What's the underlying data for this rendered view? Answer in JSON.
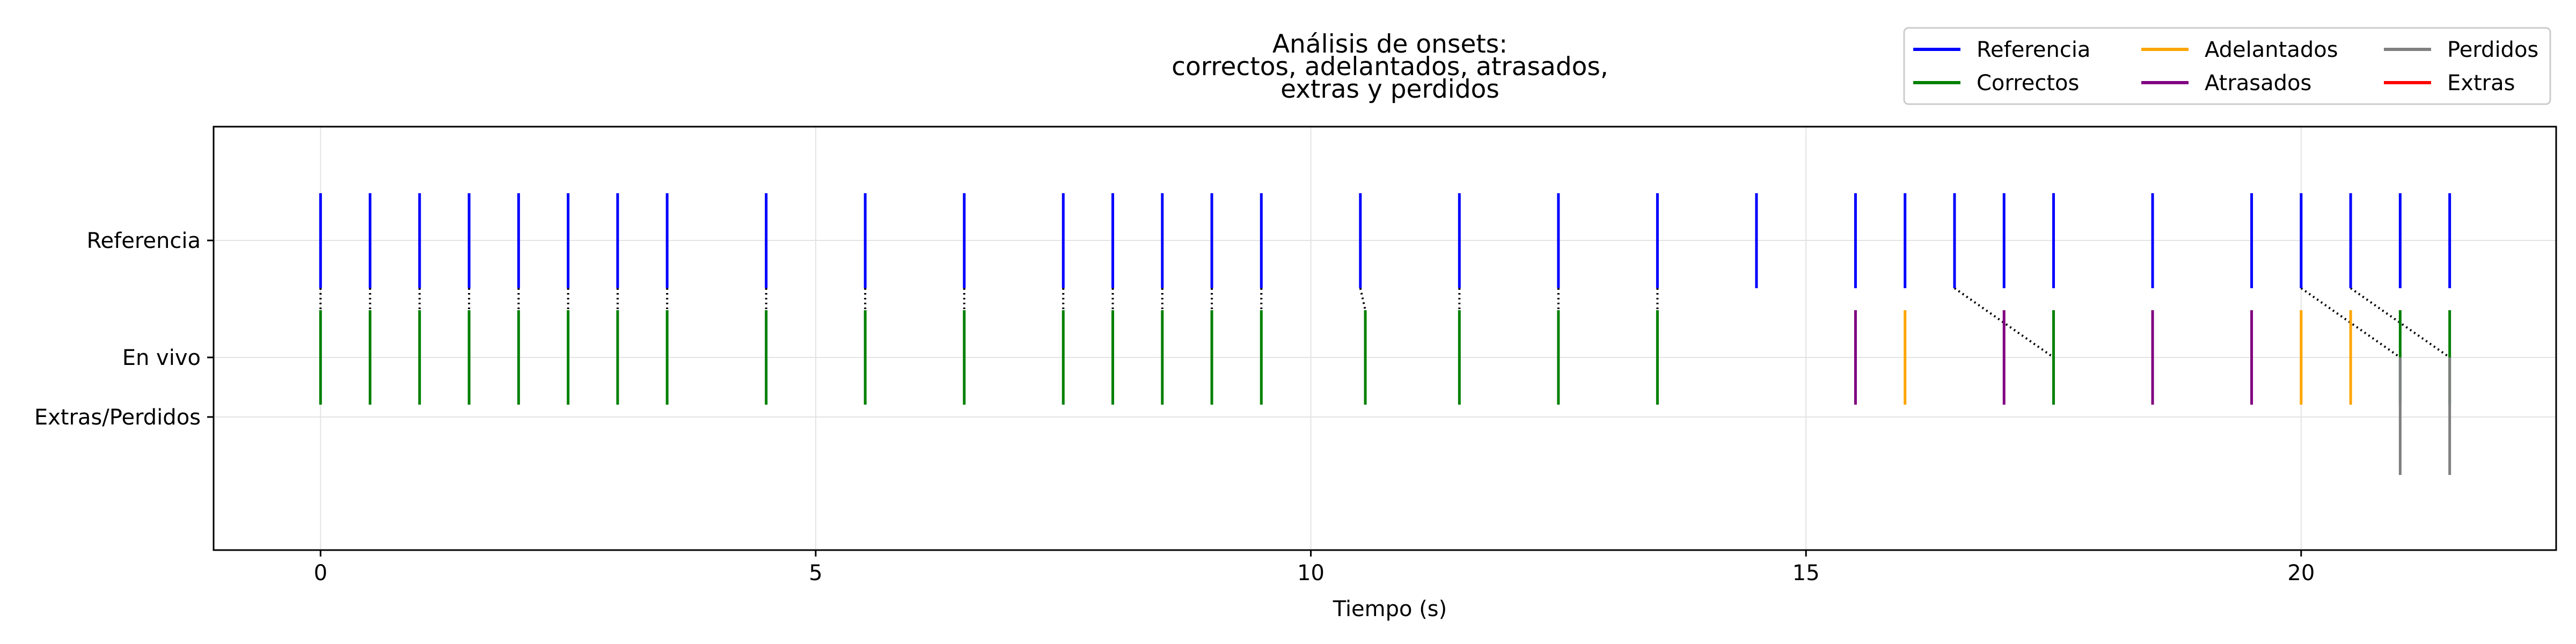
{
  "chart_data": {
    "type": "event-raster",
    "title": "Análisis de onsets:\ncorrectos, adelantados, atrasados,\nextras y perdidos",
    "xlabel": "Tiempo (s)",
    "ylabel": "",
    "xlim": [
      -1.08,
      22.575
    ],
    "x_ticks": [
      0,
      5,
      10,
      15,
      20
    ],
    "grid": true,
    "legend_position": "top-right",
    "rows": [
      "Referencia",
      "En vivo",
      "Extras/Perdidos"
    ],
    "legend": [
      {
        "label": "Referencia",
        "color": "#0000ff"
      },
      {
        "label": "Correctos",
        "color": "#008000"
      },
      {
        "label": "Adelantados",
        "color": "#ffa500"
      },
      {
        "label": "Atrasados",
        "color": "#800080"
      },
      {
        "label": "Perdidos",
        "color": "#808080"
      },
      {
        "label": "Extras",
        "color": "#ff0000"
      }
    ],
    "reference_onsets": [
      0,
      0.5,
      1.0,
      1.5,
      2.0,
      2.5,
      3.0,
      3.5,
      4.5,
      5.5,
      6.5,
      7.5,
      8.0,
      8.5,
      9.0,
      9.5,
      10.5,
      11.5,
      12.5,
      13.5,
      14.5,
      15.5,
      16.0,
      16.5,
      17.0,
      17.5,
      18.5,
      19.5,
      20.0,
      20.5,
      21.0,
      21.5
    ],
    "live_onsets": {
      "Correctos": [
        0,
        0.5,
        1.0,
        1.5,
        2.0,
        2.5,
        3.0,
        3.5,
        4.5,
        5.5,
        6.5,
        7.5,
        8.0,
        8.5,
        9.0,
        9.5,
        10.55,
        11.5,
        12.5,
        13.5,
        17.5,
        21.0,
        21.5
      ],
      "Adelantados": [
        16.0,
        20.0,
        20.5
      ],
      "Atrasados": [
        15.5,
        17.0,
        18.5,
        19.5
      ]
    },
    "perdidos": [
      21.0,
      21.5
    ],
    "extras": [],
    "matches": [
      [
        0,
        0
      ],
      [
        0.5,
        0.5
      ],
      [
        1.0,
        1.0
      ],
      [
        1.5,
        1.5
      ],
      [
        2.0,
        2.0
      ],
      [
        2.5,
        2.5
      ],
      [
        3.0,
        3.0
      ],
      [
        3.5,
        3.5
      ],
      [
        4.5,
        4.5
      ],
      [
        5.5,
        5.5
      ],
      [
        6.5,
        6.5
      ],
      [
        7.5,
        7.5
      ],
      [
        8.0,
        8.0
      ],
      [
        8.5,
        8.5
      ],
      [
        9.0,
        9.0
      ],
      [
        9.5,
        9.5
      ],
      [
        10.5,
        10.55
      ],
      [
        11.5,
        11.5
      ],
      [
        12.5,
        12.5
      ],
      [
        13.5,
        13.5
      ],
      [
        16.5,
        17.5
      ],
      [
        20.0,
        21.0
      ],
      [
        20.5,
        21.5
      ]
    ]
  }
}
